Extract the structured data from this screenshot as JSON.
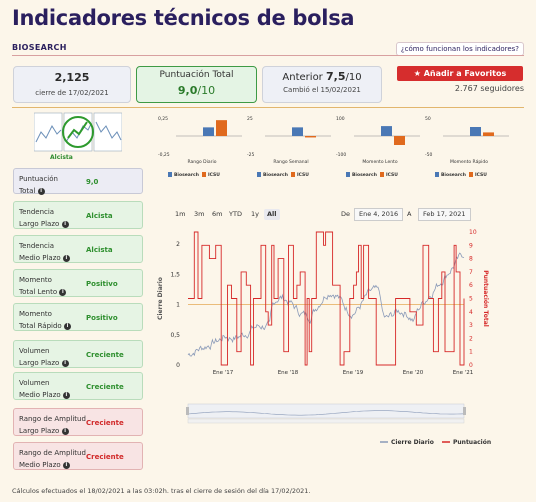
{
  "header": {
    "title": "Indicadores técnicos de bolsa",
    "company": "BIOSEARCH",
    "how_link": "¿cómo funcionan los indicadores?"
  },
  "cards": {
    "price": "2,125",
    "price_date": "cierre de 17/02/2021",
    "score_label": "Puntuación Total",
    "score_value": "9,0",
    "score_max": "/10",
    "prev_label": "Anterior",
    "prev_value": "7,5",
    "prev_max": "/10",
    "prev_changed": "Cambió el 15/02/2021",
    "fav_button": "Añadir a Favoritos",
    "followers": "2.767 seguidores"
  },
  "thumb_label": "Alcista",
  "indicators": [
    {
      "name1": "Puntuación",
      "name2": "Total",
      "value": "9,0",
      "kind": "score"
    },
    {
      "name1": "Tendencia",
      "name2": "Largo Plazo",
      "value": "Alcista",
      "kind": "green"
    },
    {
      "name1": "Tendencia",
      "name2": "Medio Plazo",
      "value": "Alcista",
      "kind": "green"
    },
    {
      "name1": "Momento",
      "name2": "Total Lento",
      "value": "Positivo",
      "kind": "green"
    },
    {
      "name1": "Momento",
      "name2": "Total Rápido",
      "value": "Positivo",
      "kind": "green"
    },
    {
      "name1": "Volumen",
      "name2": "Largo Plazo",
      "value": "Creciente",
      "kind": "green"
    },
    {
      "name1": "Volumen",
      "name2": "Medio Plazo",
      "value": "Creciente",
      "kind": "green"
    },
    {
      "name1": "Rango de Amplitud",
      "name2": "Largo Plazo",
      "value": "Creciente",
      "kind": "red"
    },
    {
      "name1": "Rango de Amplitud",
      "name2": "Medio Plazo",
      "value": "Creciente",
      "kind": "red"
    }
  ],
  "chart_data": [
    {
      "type": "bar",
      "title": "",
      "series": [
        {
          "name": "Biosearch",
          "color": "#4a78b5"
        },
        {
          "name": "ICSU",
          "color": "#e06a1e"
        }
      ],
      "panels": [
        {
          "category": "Rango Diario",
          "ticks": [
            "0,25",
            "-0,25"
          ],
          "values": [
            0.12,
            0.22
          ]
        },
        {
          "category": "Rango Semanal",
          "ticks": [
            "25",
            "-25"
          ],
          "values": [
            12,
            -2
          ]
        },
        {
          "category": "Momento Lento",
          "ticks": [
            "100",
            "-100"
          ],
          "values": [
            55,
            -50
          ]
        },
        {
          "category": "Momento Rápido",
          "ticks": [
            "50",
            "-50"
          ],
          "values": [
            25,
            10
          ]
        }
      ]
    },
    {
      "type": "line",
      "range_buttons": [
        "1m",
        "3m",
        "6m",
        "YTD",
        "1y",
        "All"
      ],
      "selected_range": "All",
      "from_label": "De",
      "from_date": "Ene 4, 2016",
      "to_label": "A",
      "to_date": "Feb 17, 2021",
      "x_ticks": [
        "Ene '17",
        "Ene '18",
        "Ene '19",
        "Ene '20",
        "Ene '21"
      ],
      "y_left_label": "Cierre Diario",
      "y_left_ticks": [
        "0",
        "0,5",
        "1",
        "1,5",
        "2"
      ],
      "y_left_range": [
        0,
        2.2
      ],
      "y_right_label": "Puntuación Total",
      "y_right_ticks": [
        "0",
        "1",
        "2",
        "3",
        "4",
        "5",
        "6",
        "7",
        "8",
        "9",
        "10"
      ],
      "y_right_range": [
        0,
        10
      ],
      "reference_line_left_value": 1.0,
      "series": [
        {
          "name": "Cierre Diario",
          "color": "#8a9ab8"
        },
        {
          "name": "Puntuación",
          "color": "#d62828"
        }
      ]
    }
  ],
  "footnote": "Cálculos efectuados el 18/02/2021 a las 03:02h. tras el cierre de sesión del día 17/02/2021."
}
